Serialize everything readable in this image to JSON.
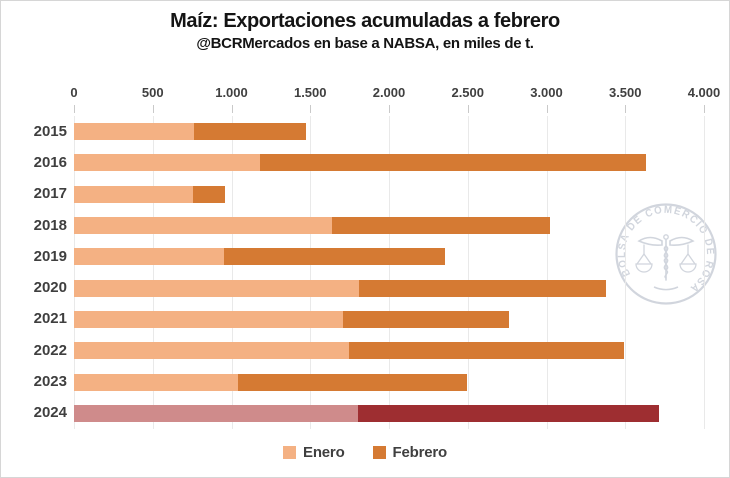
{
  "title": "Maíz: Exportaciones acumuladas a febrero",
  "subtitle": "@BCRMercados en base a NABSA, en miles de t.",
  "watermark": {
    "ring_text": "BOLSA DE COMERCIO DE ROSARIO",
    "color": "#c2c8d2"
  },
  "legend": {
    "items": [
      "Enero",
      "Febrero"
    ]
  },
  "chart_data": {
    "type": "bar",
    "orientation": "horizontal",
    "stacked": true,
    "title": "Maíz: Exportaciones acumuladas a febrero",
    "subtitle": "@BCRMercados en base a NABSA, en miles de t.",
    "unit": "miles de t",
    "categories": [
      "2015",
      "2016",
      "2017",
      "2018",
      "2019",
      "2020",
      "2021",
      "2022",
      "2023",
      "2024"
    ],
    "series": [
      {
        "name": "Enero",
        "color": "#F4B183",
        "values": [
          765,
          1180,
          755,
          1640,
          950,
          1810,
          1705,
          1745,
          1040,
          1800
        ]
      },
      {
        "name": "Febrero",
        "color": "#D57A33",
        "values": [
          710,
          2450,
          205,
          1385,
          1405,
          1570,
          1055,
          1750,
          1455,
          1915
        ]
      }
    ],
    "totals": [
      1475,
      3630,
      960,
      3025,
      2355,
      3380,
      2760,
      3495,
      2495,
      3715
    ],
    "highlight_category": "2024",
    "highlight_colors": {
      "Enero": "#CF8B8B",
      "Febrero": "#9E2E31"
    },
    "x_ticks": [
      "0",
      "500",
      "1.000",
      "1.500",
      "2.000",
      "2.500",
      "3.000",
      "3.500",
      "4.000"
    ],
    "xlim": [
      0,
      4000
    ],
    "grid": true,
    "axis_position": "top",
    "legend_position": "bottom"
  }
}
